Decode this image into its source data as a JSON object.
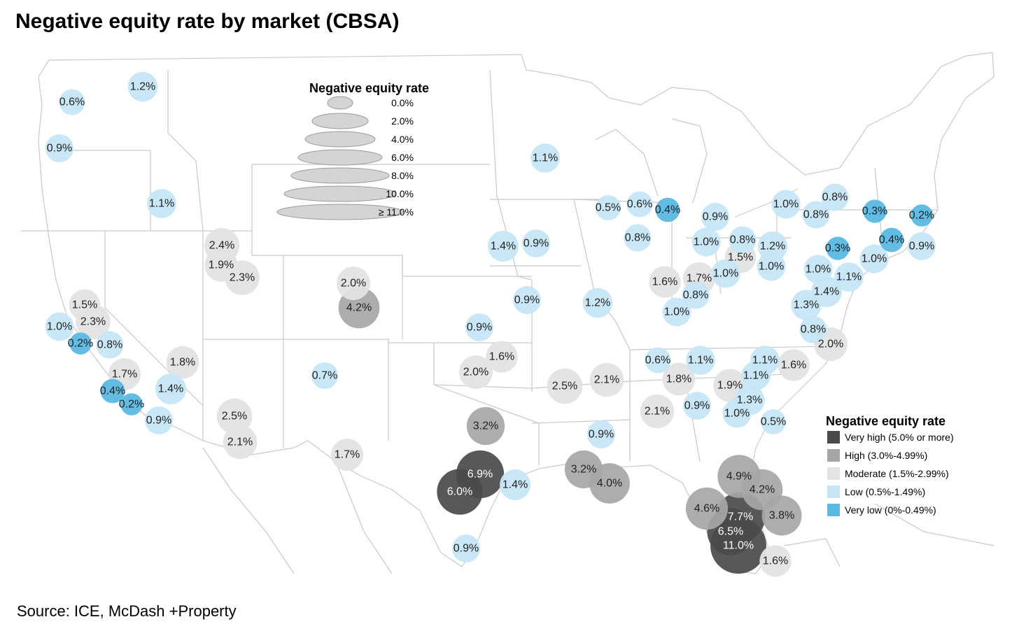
{
  "title": "Negative equity rate by market (CBSA)",
  "source": "Source: ICE, McDash +Property",
  "size_legend": {
    "title": "Negative equity rate",
    "items": [
      "0.0%",
      "2.0%",
      "4.0%",
      "6.0%",
      "8.0%",
      "10.0%",
      "≥ 11.0%"
    ]
  },
  "color_legend": {
    "title": "Negative equity rate",
    "items": [
      {
        "label": "Very high (5.0% or more)",
        "color": "#4a4a4a"
      },
      {
        "label": "High (3.0%-4.99%)",
        "color": "#a6a6a6"
      },
      {
        "label": "Moderate (1.5%-2.99%)",
        "color": "#e3e3e3"
      },
      {
        "label": "Low (0.5%-1.49%)",
        "color": "#c6e6f5"
      },
      {
        "label": "Very low (0%-0.49%)",
        "color": "#5ab8e3"
      }
    ]
  },
  "colors": {
    "very_high": "#4a4a4a",
    "high": "#a6a6a6",
    "moderate": "#e3e3e3",
    "low": "#c6e6f5",
    "very_low": "#5ab8e3"
  },
  "markets": [
    {
      "label": "0.6%",
      "value": 0.6
    },
    {
      "label": "1.2%",
      "value": 1.2
    },
    {
      "label": "0.9%",
      "value": 0.9
    },
    {
      "label": "1.1%",
      "value": 1.1
    },
    {
      "label": "2.4%",
      "value": 2.4
    },
    {
      "label": "1.9%",
      "value": 1.9
    },
    {
      "label": "2.3%",
      "value": 2.3
    },
    {
      "label": "2.0%",
      "value": 2.0
    },
    {
      "label": "4.2%",
      "value": 4.2
    },
    {
      "label": "1.5%",
      "value": 1.5
    },
    {
      "label": "2.3%",
      "value": 2.3
    },
    {
      "label": "1.0%",
      "value": 1.0
    },
    {
      "label": "0.2%",
      "value": 0.2
    },
    {
      "label": "0.8%",
      "value": 0.8
    },
    {
      "label": "1.8%",
      "value": 1.8
    },
    {
      "label": "1.7%",
      "value": 1.7
    },
    {
      "label": "1.4%",
      "value": 1.4
    },
    {
      "label": "0.4%",
      "value": 0.4
    },
    {
      "label": "0.2%",
      "value": 0.2
    },
    {
      "label": "0.9%",
      "value": 0.9
    },
    {
      "label": "2.5%",
      "value": 2.5
    },
    {
      "label": "2.1%",
      "value": 2.1
    },
    {
      "label": "0.7%",
      "value": 0.7
    },
    {
      "label": "1.7%",
      "value": 1.7
    },
    {
      "label": "1.1%",
      "value": 1.1
    },
    {
      "label": "1.4%",
      "value": 1.4
    },
    {
      "label": "0.9%",
      "value": 0.9
    },
    {
      "label": "0.9%",
      "value": 0.9
    },
    {
      "label": "0.9%",
      "value": 0.9
    },
    {
      "label": "1.6%",
      "value": 1.6
    },
    {
      "label": "2.0%",
      "value": 2.0
    },
    {
      "label": "3.2%",
      "value": 3.2
    },
    {
      "label": "6.9%",
      "value": 6.9
    },
    {
      "label": "6.0%",
      "value": 6.0
    },
    {
      "label": "1.4%",
      "value": 1.4
    },
    {
      "label": "0.9%",
      "value": 0.9
    },
    {
      "label": "2.5%",
      "value": 2.5
    },
    {
      "label": "2.1%",
      "value": 2.1
    },
    {
      "label": "0.9%",
      "value": 0.9
    },
    {
      "label": "3.2%",
      "value": 3.2
    },
    {
      "label": "4.0%",
      "value": 4.0
    },
    {
      "label": "1.2%",
      "value": 1.2
    },
    {
      "label": "0.5%",
      "value": 0.5
    },
    {
      "label": "0.6%",
      "value": 0.6
    },
    {
      "label": "0.4%",
      "value": 0.4
    },
    {
      "label": "0.8%",
      "value": 0.8
    },
    {
      "label": "1.6%",
      "value": 1.6
    },
    {
      "label": "1.7%",
      "value": 1.7
    },
    {
      "label": "0.8%",
      "value": 0.8
    },
    {
      "label": "1.0%",
      "value": 1.0
    },
    {
      "label": "1.0%",
      "value": 1.0
    },
    {
      "label": "0.9%",
      "value": 0.9
    },
    {
      "label": "1.0%",
      "value": 1.0
    },
    {
      "label": "0.8%",
      "value": 0.8
    },
    {
      "label": "1.5%",
      "value": 1.5
    },
    {
      "label": "1.2%",
      "value": 1.2
    },
    {
      "label": "1.0%",
      "value": 1.0
    },
    {
      "label": "1.0%",
      "value": 1.0
    },
    {
      "label": "0.6%",
      "value": 0.6
    },
    {
      "label": "1.1%",
      "value": 1.1
    },
    {
      "label": "1.8%",
      "value": 1.8
    },
    {
      "label": "2.1%",
      "value": 2.1
    },
    {
      "label": "0.9%",
      "value": 0.9
    },
    {
      "label": "1.9%",
      "value": 1.9
    },
    {
      "label": "1.3%",
      "value": 1.3
    },
    {
      "label": "1.0%",
      "value": 1.0
    },
    {
      "label": "1.1%",
      "value": 1.1
    },
    {
      "label": "1.1%",
      "value": 1.1
    },
    {
      "label": "1.6%",
      "value": 1.6
    },
    {
      "label": "0.5%",
      "value": 0.5
    },
    {
      "label": "1.0%",
      "value": 1.0
    },
    {
      "label": "0.8%",
      "value": 0.8
    },
    {
      "label": "0.8%",
      "value": 0.8
    },
    {
      "label": "0.3%",
      "value": 0.3
    },
    {
      "label": "0.2%",
      "value": 0.2
    },
    {
      "label": "0.4%",
      "value": 0.4
    },
    {
      "label": "0.9%",
      "value": 0.9
    },
    {
      "label": "0.3%",
      "value": 0.3
    },
    {
      "label": "1.0%",
      "value": 1.0
    },
    {
      "label": "1.1%",
      "value": 1.1
    },
    {
      "label": "1.4%",
      "value": 1.4
    },
    {
      "label": "1.3%",
      "value": 1.3
    },
    {
      "label": "0.8%",
      "value": 0.8
    },
    {
      "label": "2.0%",
      "value": 2.0
    },
    {
      "label": "4.9%",
      "value": 4.9
    },
    {
      "label": "4.2%",
      "value": 4.2
    },
    {
      "label": "4.6%",
      "value": 4.6
    },
    {
      "label": "7.7%",
      "value": 7.7
    },
    {
      "label": "3.8%",
      "value": 3.8
    },
    {
      "label": "6.5%",
      "value": 6.5
    },
    {
      "label": "11.0%",
      "value": 11.0
    },
    {
      "label": "1.6%",
      "value": 1.6
    }
  ]
}
